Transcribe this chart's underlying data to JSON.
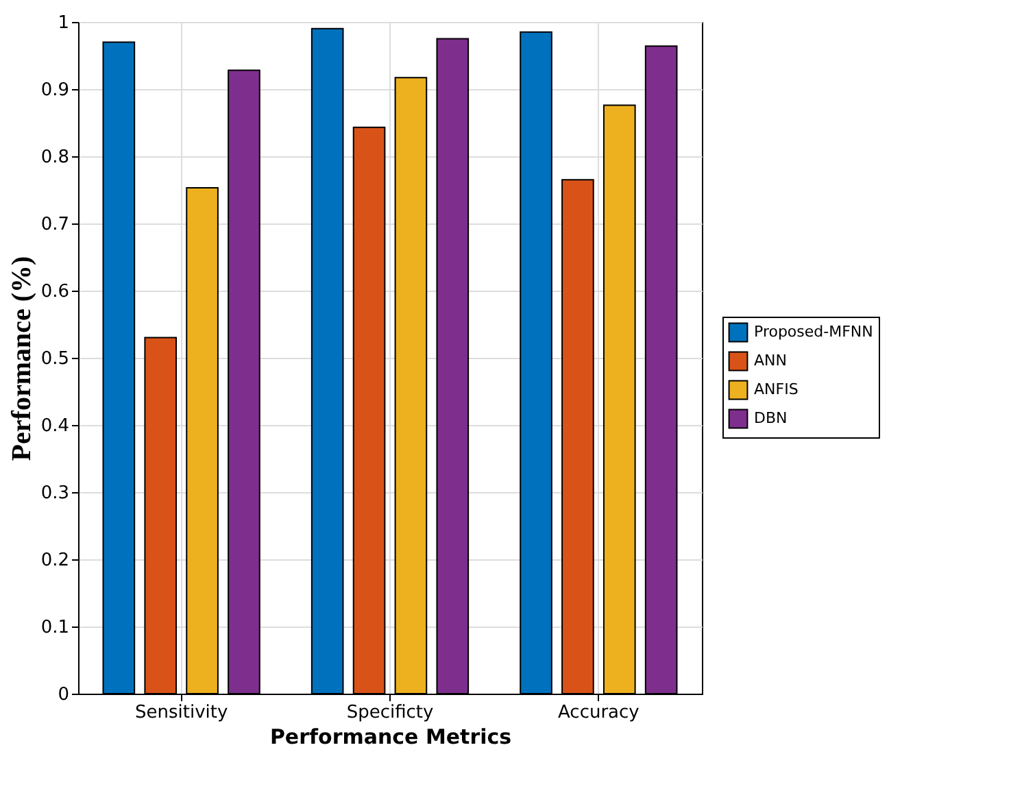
{
  "chart_data": {
    "type": "bar",
    "xlabel": "Performance Metrics",
    "ylabel": "Performance (%)",
    "categories": [
      "Sensitivity",
      "Specificty",
      "Accuracy"
    ],
    "series": [
      {
        "name": "Proposed-MFNN",
        "color": "#0072bd",
        "values": [
          0.97,
          0.99,
          0.985
        ]
      },
      {
        "name": "ANN",
        "color": "#d95319",
        "values": [
          0.53,
          0.843,
          0.765
        ]
      },
      {
        "name": "ANFIS",
        "color": "#edb120",
        "values": [
          0.753,
          0.917,
          0.876
        ]
      },
      {
        "name": "DBN",
        "color": "#7e2f8e",
        "values": [
          0.928,
          0.975,
          0.964
        ]
      }
    ],
    "ylim": [
      0,
      1
    ],
    "yticks": [
      0,
      0.1,
      0.2,
      0.3,
      0.4,
      0.5,
      0.6,
      0.7,
      0.8,
      0.9,
      1
    ],
    "grid": true,
    "legend": "right"
  }
}
